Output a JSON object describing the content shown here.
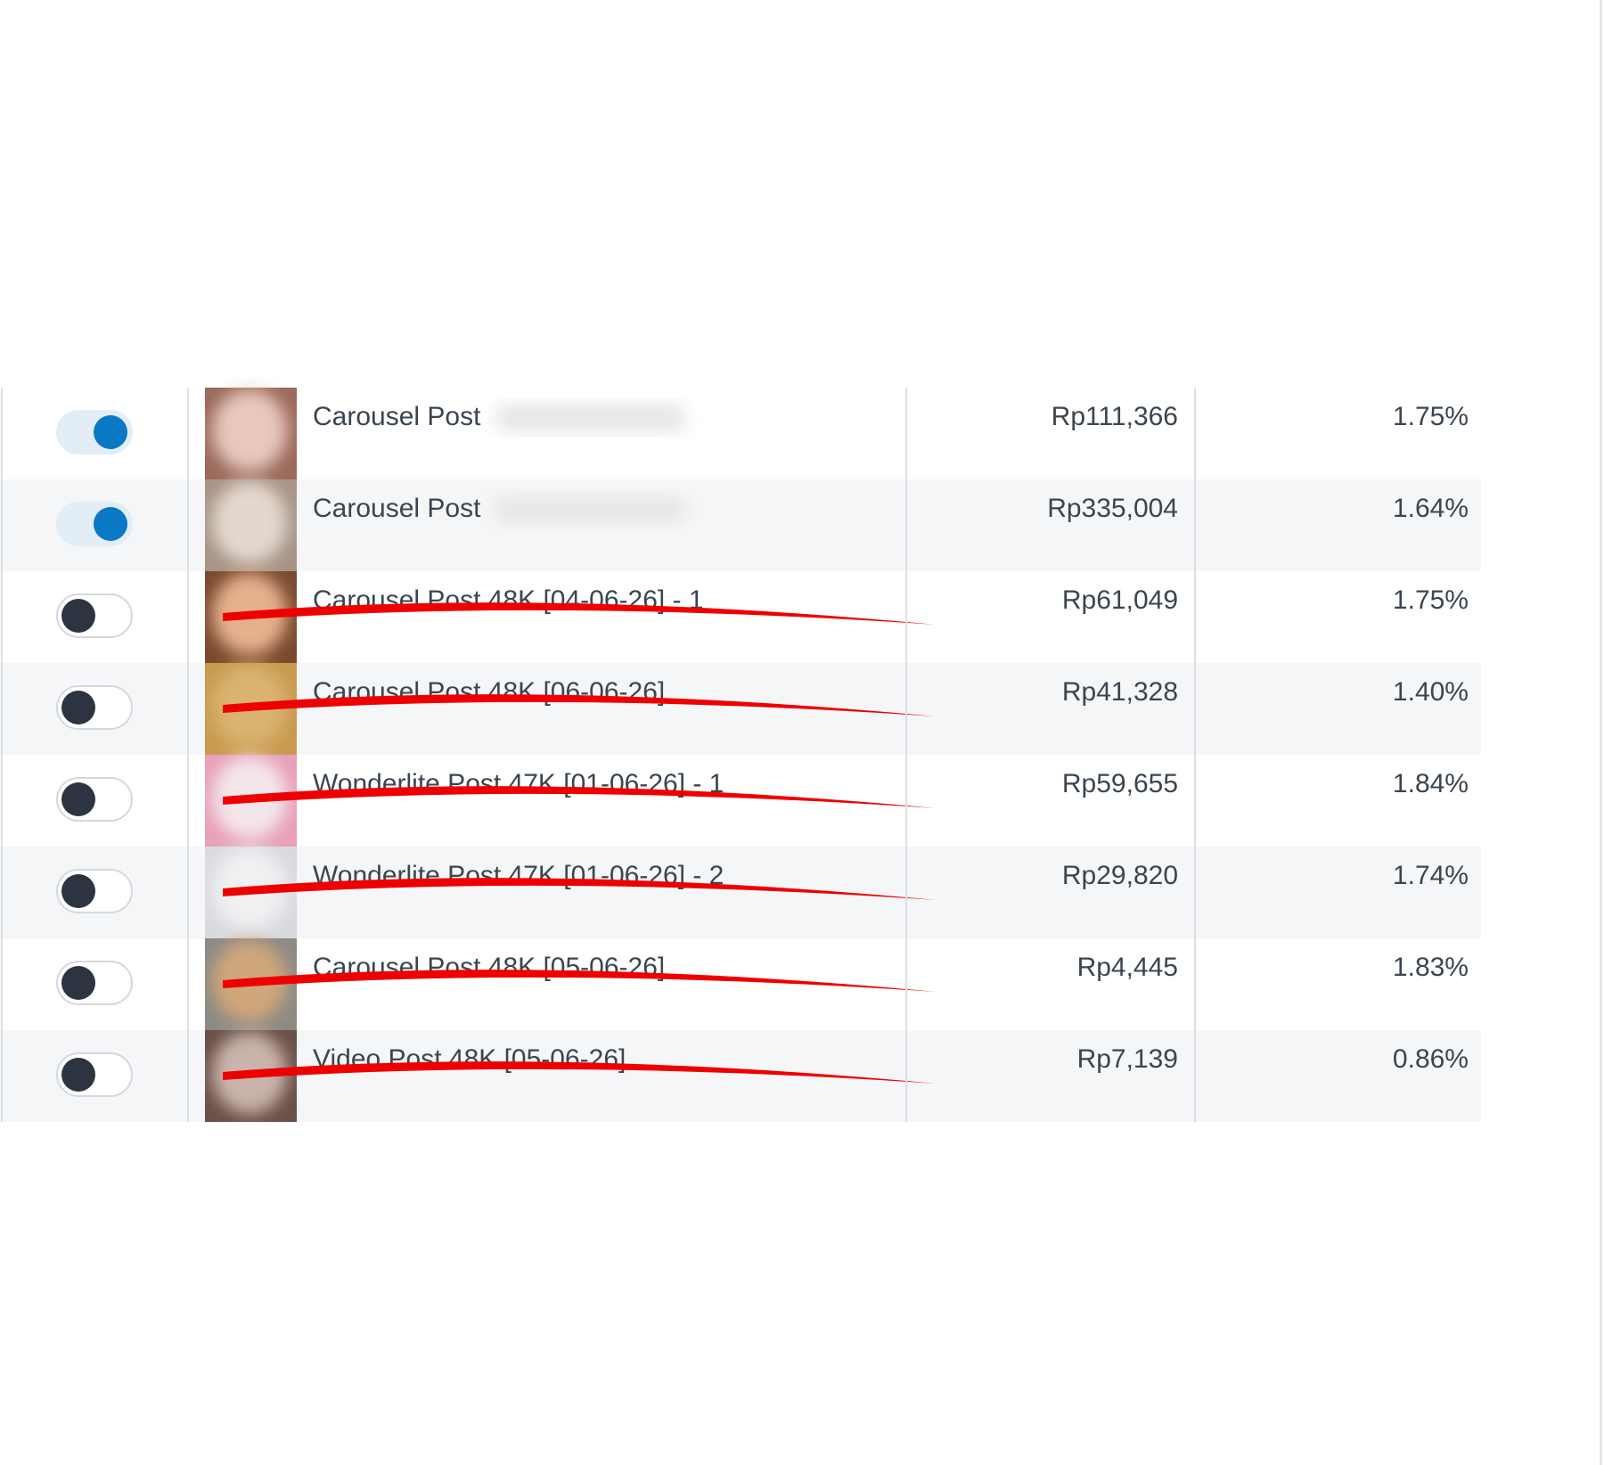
{
  "table": {
    "rows": [
      {
        "active": true,
        "name": "Carousel Post",
        "cost": "Rp111,366",
        "rate": "1.75%"
      },
      {
        "active": true,
        "name": "Carousel Post",
        "cost": "Rp335,004",
        "rate": "1.64%"
      },
      {
        "active": false,
        "name": "Carousel Post 48K [04-06-26] - 1",
        "cost": "Rp61,049",
        "rate": "1.75%"
      },
      {
        "active": false,
        "name": "Carousel Post 48K [06-06-26]",
        "cost": "Rp41,328",
        "rate": "1.40%"
      },
      {
        "active": false,
        "name": "Wonderlite Post 47K [01-06-26] - 1",
        "cost": "Rp59,655",
        "rate": "1.84%"
      },
      {
        "active": false,
        "name": "Wonderlite Post 47K [01-06-26] - 2",
        "cost": "Rp29,820",
        "rate": "1.74%"
      },
      {
        "active": false,
        "name": "Carousel Post 48K [05-06-26]",
        "cost": "Rp4,445",
        "rate": "1.83%"
      },
      {
        "active": false,
        "name": "Video Post 48K [05-06-26]",
        "cost": "Rp7,139",
        "rate": "0.86%"
      }
    ]
  }
}
